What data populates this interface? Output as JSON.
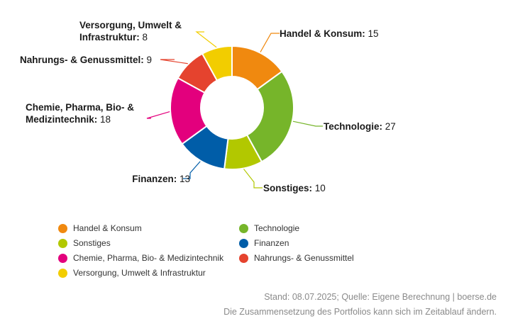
{
  "chart_data": {
    "type": "pie",
    "donut": true,
    "slices": [
      {
        "label": "Handel & Konsum",
        "value": 15,
        "color": "#f0890f"
      },
      {
        "label": "Technologie",
        "value": 27,
        "color": "#76b52a"
      },
      {
        "label": "Sonstiges",
        "value": 10,
        "color": "#b2c800"
      },
      {
        "label": "Finanzen",
        "value": 13,
        "color": "#005da8"
      },
      {
        "label": "Chemie, Pharma, Bio- & Medizintechnik",
        "value": 18,
        "color": "#e3007d"
      },
      {
        "label": "Nahrungs- & Genussmittel",
        "value": 9,
        "color": "#e5432e"
      },
      {
        "label": "Versorgung, Umwelt & Infrastruktur",
        "value": 8,
        "color": "#f2cd00"
      }
    ],
    "callouts": [
      {
        "lines": [
          "Handel & Konsum:"
        ],
        "value": "15"
      },
      {
        "lines": [
          "Technologie:"
        ],
        "value": "27"
      },
      {
        "lines": [
          "Sonstiges:"
        ],
        "value": "10"
      },
      {
        "lines": [
          "Finanzen:"
        ],
        "value": "13"
      },
      {
        "lines": [
          "Chemie, Pharma, Bio- &",
          "Medizintechnik:"
        ],
        "value": "18"
      },
      {
        "lines": [
          "Nahrungs- & Genussmittel:"
        ],
        "value": "9"
      },
      {
        "lines": [
          "Versorgung, Umwelt &",
          "Infrastruktur:"
        ],
        "value": "8"
      }
    ],
    "legend": [
      "Handel & Konsum",
      "Technologie",
      "Sonstiges",
      "Finanzen",
      "Chemie, Pharma, Bio- & Medizintechnik",
      "Nahrungs- & Genussmittel",
      "Versorgung, Umwelt & Infrastruktur"
    ],
    "legend_placement": "bottom-left"
  },
  "footer": {
    "source": "Stand: 08.07.2025; Quelle: Eigene Berechnung | boerse.de",
    "note": "Die Zusammensetzung des Portfolios kann sich im Zeitablauf ändern."
  }
}
